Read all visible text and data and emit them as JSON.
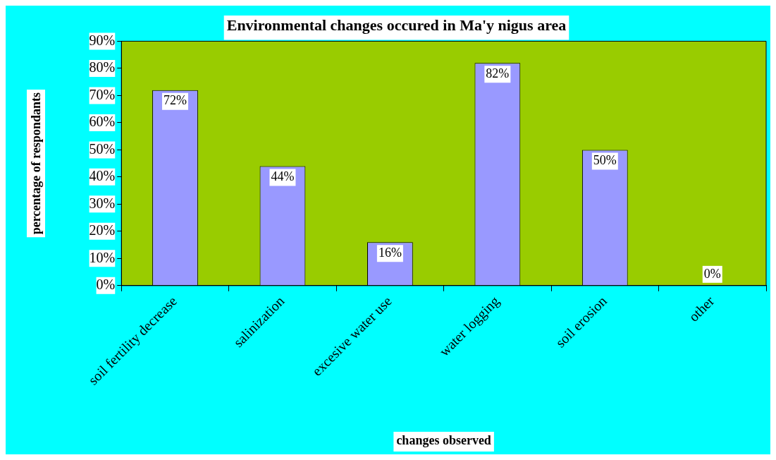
{
  "chart_data": {
    "type": "bar",
    "title": "Environmental changes occured in Ma'y nigus area",
    "xlabel": "changes observed",
    "ylabel": "percentage of respondants",
    "categories": [
      "soil fertility decrease",
      "salinization",
      "excesive water use",
      "water logging",
      "soil erosion",
      "other"
    ],
    "values": [
      72,
      44,
      16,
      82,
      50,
      0
    ],
    "color": "#9999ff",
    "value_labels": [
      "72%",
      "44%",
      "16%",
      "82%",
      "50%",
      "0%"
    ],
    "ylim": [
      0,
      90
    ],
    "yticks": [
      {
        "value": 0,
        "label": "0%"
      },
      {
        "value": 10,
        "label": "10%"
      },
      {
        "value": 20,
        "label": "20%"
      },
      {
        "value": 30,
        "label": "30%"
      },
      {
        "value": 40,
        "label": "40%"
      },
      {
        "value": 50,
        "label": "50%"
      },
      {
        "value": 60,
        "label": "60%"
      },
      {
        "value": 70,
        "label": "70%"
      },
      {
        "value": 80,
        "label": "80%"
      },
      {
        "value": 90,
        "label": "90%"
      }
    ],
    "grid": false,
    "legend": false
  }
}
